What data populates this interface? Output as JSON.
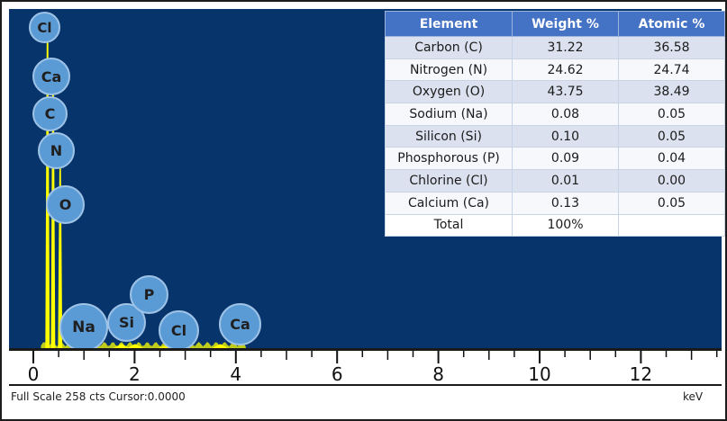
{
  "chart_data": [
    {
      "type": "line",
      "xlabel": "keV",
      "xlim": [
        0,
        13.5
      ],
      "x_ticks": [
        0,
        2,
        4,
        6,
        8,
        10,
        12
      ],
      "full_scale_text": "Full Scale 258 cts Cursor:0.0000",
      "peaks": [
        {
          "element": "C",
          "x": 0.28,
          "y": 258
        },
        {
          "element": "N",
          "x": 0.39,
          "y": 220
        },
        {
          "element": "O",
          "x": 0.53,
          "y": 145
        },
        {
          "element": "Na",
          "x": 1.04,
          "y": 4
        },
        {
          "element": "Si",
          "x": 1.74,
          "y": 3
        },
        {
          "element": "P",
          "x": 2.01,
          "y": 3
        },
        {
          "element": "Cl",
          "x": 2.62,
          "y": 2
        },
        {
          "element": "Ca",
          "x": 3.69,
          "y": 3
        }
      ],
      "peak_labels": [
        {
          "text": "Cl"
        },
        {
          "text": "Ca"
        },
        {
          "text": "C"
        },
        {
          "text": "N"
        },
        {
          "text": "O"
        },
        {
          "text": "Na"
        },
        {
          "text": "Si"
        },
        {
          "text": "P"
        },
        {
          "text": "Cl"
        },
        {
          "text": "Ca"
        }
      ]
    },
    {
      "type": "table",
      "columns": [
        "Element",
        "Weight %",
        "Atomic %"
      ],
      "rows": [
        [
          "Carbon (C)",
          "31.22",
          "36.58"
        ],
        [
          "Nitrogen (N)",
          "24.62",
          "24.74"
        ],
        [
          "Oxygen (O)",
          "43.75",
          "38.49"
        ],
        [
          "Sodium (Na)",
          "0.08",
          "0.05"
        ],
        [
          "Silicon (Si)",
          "0.10",
          "0.05"
        ],
        [
          "Phosphorous (P)",
          "0.09",
          "0.04"
        ],
        [
          "Chlorine (Cl)",
          "0.01",
          "0.00"
        ],
        [
          "Calcium (Ca)",
          "0.13",
          "0.05"
        ],
        [
          "Total",
          "100%",
          ""
        ]
      ]
    }
  ],
  "colors": {
    "plot_background": "#07346b",
    "spectrum": "#ffff00",
    "label_bubble": "#5b9bd5",
    "table_header": "#4472c4"
  }
}
